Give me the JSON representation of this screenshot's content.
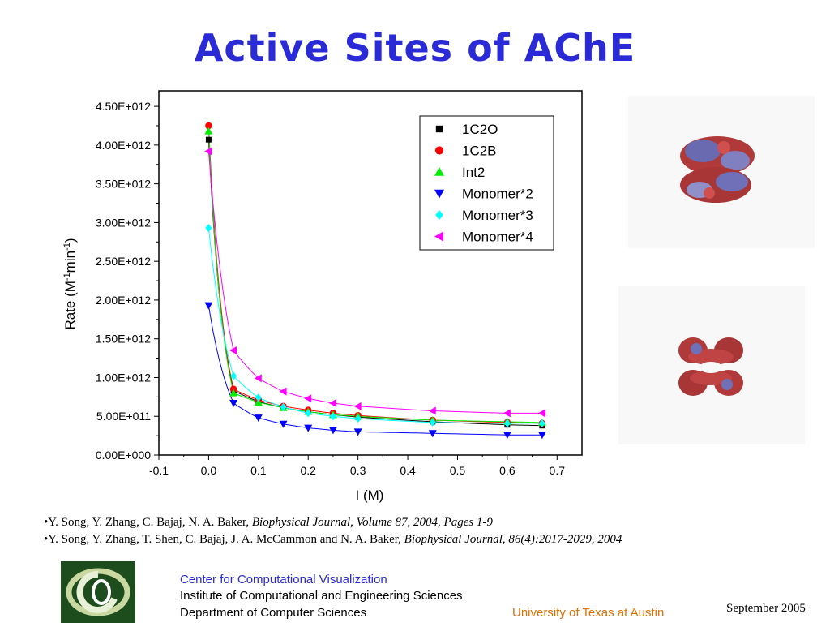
{
  "slide": {
    "title": "Active Sites of AChE",
    "references": [
      {
        "bullet": "•",
        "authors": "Y. Song, Y. Zhang, C. Bajaj, N. A. Baker, ",
        "source": "Biophysical Journal, Volume 87, 2004, Pages 1-9"
      },
      {
        "bullet": "•",
        "authors": "Y. Song, Y. Zhang, T. Shen, C. Bajaj, J. A. McCammon and N. A. Baker, ",
        "source": "Biophysical Journal, 86(4):2017-2029, 2004"
      }
    ],
    "footer": {
      "center_name": "Center for Computational Visualization",
      "institute": "Institute of Computational and Engineering Sciences",
      "department": "Department of Computer Sciences",
      "university": "University of Texas at Austin",
      "date": "September  2005"
    },
    "colors": {
      "title": "#2a2ad6",
      "center_name": "#2a2ad6",
      "university": "#e07000",
      "logo_bg": "#1d4d1d"
    },
    "images": [
      "protein-dimer-side-view",
      "protein-dimer-top-view"
    ]
  },
  "chart_data": {
    "type": "scatter",
    "title": "",
    "xlabel": "I (M)",
    "ylabel": "Rate (M-1min-1)",
    "xlim": [
      -0.1,
      0.75
    ],
    "ylim": [
      0,
      4700000000000.0
    ],
    "x_ticks": [
      "-0.1",
      "0.0",
      "0.1",
      "0.2",
      "0.3",
      "0.4",
      "0.5",
      "0.6",
      "0.7"
    ],
    "x_tick_values": [
      -0.1,
      0.0,
      0.1,
      0.2,
      0.3,
      0.4,
      0.5,
      0.6,
      0.7
    ],
    "y_ticks": [
      "0.00E+000",
      "5.00E+011",
      "1.00E+012",
      "1.50E+012",
      "2.00E+012",
      "2.50E+012",
      "3.00E+012",
      "3.50E+012",
      "4.00E+012",
      "4.50E+012"
    ],
    "y_tick_values": [
      0,
      500000000000.0,
      1000000000000.0,
      1500000000000.0,
      2000000000000.0,
      2500000000000.0,
      3000000000000.0,
      3500000000000.0,
      4000000000000.0,
      4500000000000.0
    ],
    "grid": false,
    "legend_position": "top-right",
    "x": [
      0.0,
      0.05,
      0.1,
      0.15,
      0.2,
      0.25,
      0.3,
      0.45,
      0.6,
      0.67
    ],
    "series": [
      {
        "name": "1C2O",
        "marker": "square",
        "color": "#000000",
        "values": [
          4070000000000.0,
          830000000000.0,
          690000000000.0,
          610000000000.0,
          560000000000.0,
          520000000000.0,
          490000000000.0,
          430000000000.0,
          390000000000.0,
          380000000000.0
        ]
      },
      {
        "name": "1C2B",
        "marker": "circle",
        "color": "#ff0000",
        "values": [
          4250000000000.0,
          850000000000.0,
          710000000000.0,
          630000000000.0,
          580000000000.0,
          540000000000.0,
          510000000000.0,
          450000000000.0,
          420000000000.0,
          410000000000.0
        ]
      },
      {
        "name": "Int2",
        "marker": "triangle-up",
        "color": "#00ee00",
        "values": [
          4180000000000.0,
          800000000000.0,
          680000000000.0,
          610000000000.0,
          560000000000.0,
          520000000000.0,
          500000000000.0,
          450000000000.0,
          430000000000.0,
          420000000000.0
        ]
      },
      {
        "name": "Monomer*2",
        "marker": "triangle-down",
        "color": "#0000ff",
        "values": [
          1930000000000.0,
          670000000000.0,
          480000000000.0,
          400000000000.0,
          350000000000.0,
          320000000000.0,
          300000000000.0,
          280000000000.0,
          260000000000.0,
          260000000000.0
        ]
      },
      {
        "name": "Monomer*3",
        "marker": "diamond",
        "color": "#00ffff",
        "values": [
          2930000000000.0,
          1020000000000.0,
          740000000000.0,
          620000000000.0,
          540000000000.0,
          500000000000.0,
          470000000000.0,
          420000000000.0,
          410000000000.0,
          410000000000.0
        ]
      },
      {
        "name": "Monomer*4",
        "marker": "triangle-left",
        "color": "#ff00ff",
        "values": [
          3920000000000.0,
          1350000000000.0,
          990000000000.0,
          820000000000.0,
          730000000000.0,
          670000000000.0,
          630000000000.0,
          570000000000.0,
          540000000000.0,
          540000000000.0
        ]
      }
    ]
  }
}
